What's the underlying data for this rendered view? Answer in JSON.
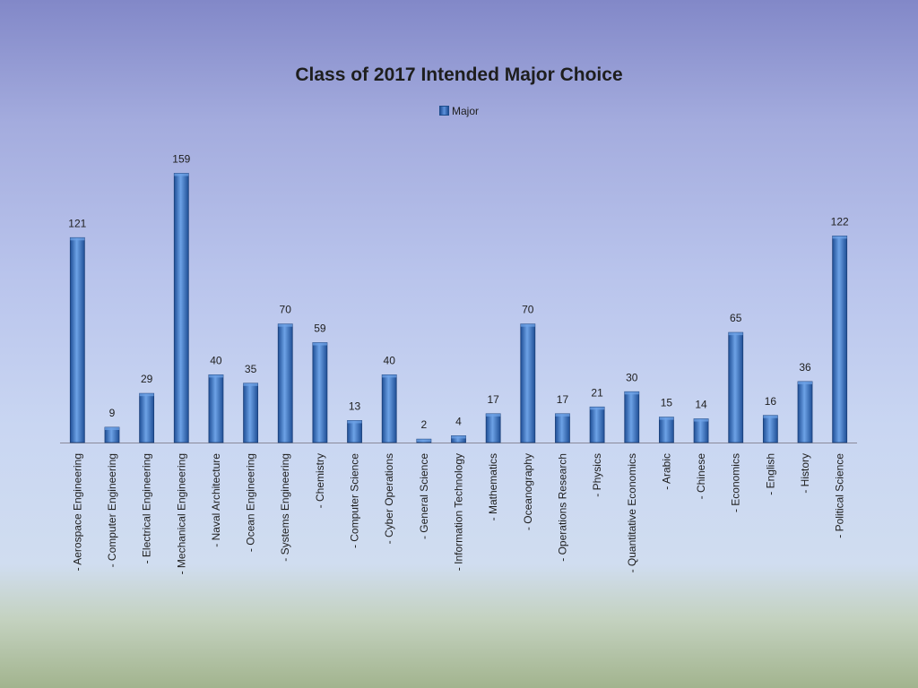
{
  "chart_data": {
    "type": "bar",
    "title": "Class of 2017 Intended Major Choice",
    "xlabel": "",
    "ylabel": "",
    "legend": {
      "placement": "top",
      "entries": [
        "Major"
      ]
    },
    "grid": false,
    "ylim": [
      0,
      175
    ],
    "categories": [
      "- Aerospace Engineering",
      "- Computer Engineering",
      "- Electrical Engineering",
      "- Mechanical Engineering",
      "- Naval Architecture",
      "- Ocean Engineering",
      "- Systems Engineering",
      "- Chemistry",
      "- Computer Science",
      "- Cyber Operations",
      "- General Science",
      "- Information Technology",
      "- Mathematics",
      "- Oceanography",
      "- Operations Research",
      "- Physics",
      "- Quantitative Economics",
      "- Arabic",
      "- Chinese",
      "- Economics",
      "- English",
      "- History",
      "- Political Science"
    ],
    "series": [
      {
        "name": "Major",
        "values": [
          121,
          9,
          29,
          159,
          40,
          35,
          70,
          59,
          13,
          40,
          2,
          4,
          17,
          70,
          17,
          21,
          30,
          15,
          14,
          65,
          16,
          36,
          122
        ],
        "data_labels": [
          "121",
          "9",
          "29",
          "159",
          "40",
          "35",
          "70",
          "59",
          "13",
          "40",
          "2",
          "4",
          "17",
          "70",
          "17",
          "21",
          "30",
          "15",
          "14",
          "65",
          "16",
          "36",
          "122"
        ]
      }
    ],
    "colors": {
      "bar": "#3f7ac6",
      "bar_dark": "#1f4f96",
      "bar_light": "#6da2e6",
      "axis": "#8a8a9a"
    }
  }
}
